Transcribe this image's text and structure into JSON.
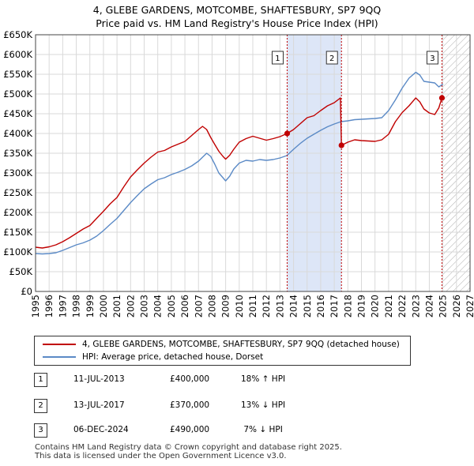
{
  "title_line1": "4, GLEBE GARDENS, MOTCOMBE, SHAFTESBURY, SP7 9QQ",
  "title_line2": "Price paid vs. HM Land Registry's House Price Index (HPI)",
  "colors": {
    "property": "#c00000",
    "hpi": "#5b8ac6",
    "shade": "#dde6f7",
    "marker_border": "#333333"
  },
  "legend": {
    "property_label": "4, GLEBE GARDENS, MOTCOMBE, SHAFTESBURY, SP7 9QQ (detached house)",
    "hpi_label": "HPI: Average price, detached house, Dorset"
  },
  "sales": [
    {
      "num": "1",
      "date": "11-JUL-2013",
      "price": "£400,000",
      "hpi": "18% ↑ HPI"
    },
    {
      "num": "2",
      "date": "13-JUL-2017",
      "price": "£370,000",
      "hpi": "13% ↓ HPI"
    },
    {
      "num": "3",
      "date": "06-DEC-2024",
      "price": "£490,000",
      "hpi": " 7% ↓ HPI"
    }
  ],
  "footer_line1": "Contains HM Land Registry data © Crown copyright and database right 2025.",
  "footer_line2": "This data is licensed under the Open Government Licence v3.0.",
  "chart_data": {
    "type": "line",
    "xlim": [
      1995,
      2027
    ],
    "ylim": [
      0,
      650000
    ],
    "x_ticks": [
      1995,
      1996,
      1997,
      1998,
      1999,
      2000,
      2001,
      2002,
      2003,
      2004,
      2005,
      2006,
      2007,
      2008,
      2009,
      2010,
      2011,
      2012,
      2013,
      2014,
      2015,
      2016,
      2017,
      2018,
      2019,
      2020,
      2021,
      2022,
      2023,
      2024,
      2025,
      2026,
      2027
    ],
    "y_ticks": [
      0,
      50000,
      100000,
      150000,
      200000,
      250000,
      300000,
      350000,
      400000,
      450000,
      500000,
      550000,
      600000,
      650000
    ],
    "y_tick_labels": [
      "£0",
      "£50K",
      "£100K",
      "£150K",
      "£200K",
      "£250K",
      "£300K",
      "£350K",
      "£400K",
      "£450K",
      "£500K",
      "£550K",
      "£600K",
      "£650K"
    ],
    "grid": true,
    "shaded_regions": [
      {
        "from": 2013.53,
        "to": 2017.53
      }
    ],
    "hatched_region": {
      "from": 2025.0,
      "to": 2027
    },
    "sale_markers": [
      {
        "label": "1",
        "x": 2013.53,
        "y": 400000
      },
      {
        "label": "2",
        "x": 2017.53,
        "y": 370000
      },
      {
        "label": "3",
        "x": 2024.93,
        "y": 490000
      }
    ],
    "series": [
      {
        "name": "4, GLEBE GARDENS, MOTCOMBE, SHAFTESBURY, SP7 9QQ (detached house)",
        "x": [
          1995,
          1995.5,
          1996,
          1996.5,
          1997,
          1997.5,
          1998,
          1998.5,
          1999,
          1999.5,
          2000,
          2000.5,
          2001,
          2001.5,
          2002,
          2002.5,
          2003,
          2003.5,
          2004,
          2004.5,
          2005,
          2005.5,
          2006,
          2006.5,
          2007,
          2007.3,
          2007.6,
          2007.9,
          2008.2,
          2008.5,
          2008.8,
          2009.0,
          2009.3,
          2009.6,
          2010,
          2010.5,
          2011,
          2011.5,
          2012,
          2012.5,
          2013,
          2013.53,
          2014,
          2014.5,
          2015,
          2015.5,
          2016,
          2016.5,
          2017,
          2017.45,
          2017.53,
          2018,
          2018.5,
          2019,
          2019.5,
          2020,
          2020.5,
          2021,
          2021.5,
          2022,
          2022.5,
          2023,
          2023.3,
          2023.6,
          2024,
          2024.4,
          2024.7,
          2024.93,
          2025.1
        ],
        "values": [
          112000,
          110000,
          113000,
          118000,
          126000,
          136000,
          147000,
          158000,
          167000,
          185000,
          203000,
          222000,
          238000,
          265000,
          290000,
          308000,
          325000,
          340000,
          353000,
          357000,
          366000,
          373000,
          380000,
          395000,
          410000,
          418000,
          410000,
          390000,
          372000,
          355000,
          342000,
          335000,
          345000,
          360000,
          378000,
          387000,
          393000,
          388000,
          383000,
          387000,
          392000,
          400000,
          410000,
          425000,
          440000,
          445000,
          458000,
          470000,
          478000,
          490000,
          370000,
          378000,
          384000,
          382000,
          381000,
          380000,
          384000,
          398000,
          430000,
          453000,
          470000,
          490000,
          480000,
          462000,
          452000,
          448000,
          465000,
          490000,
          486000
        ]
      },
      {
        "name": "HPI: Average price, detached house, Dorset",
        "x": [
          1995,
          1995.5,
          1996,
          1996.5,
          1997,
          1997.5,
          1998,
          1998.5,
          1999,
          1999.5,
          2000,
          2000.5,
          2001,
          2001.5,
          2002,
          2002.5,
          2003,
          2003.5,
          2004,
          2004.5,
          2005,
          2005.5,
          2006,
          2006.5,
          2007,
          2007.3,
          2007.6,
          2007.9,
          2008.2,
          2008.5,
          2008.8,
          2009.0,
          2009.3,
          2009.6,
          2010,
          2010.5,
          2011,
          2011.5,
          2012,
          2012.5,
          2013,
          2013.5,
          2014,
          2014.5,
          2015,
          2015.5,
          2016,
          2016.5,
          2017,
          2017.5,
          2018,
          2018.5,
          2019,
          2019.5,
          2020,
          2020.5,
          2021,
          2021.5,
          2022,
          2022.5,
          2023,
          2023.3,
          2023.6,
          2024,
          2024.4,
          2024.7,
          2025.0
        ],
        "values": [
          96000,
          95000,
          96000,
          98000,
          104000,
          111000,
          118000,
          123000,
          130000,
          140000,
          154000,
          170000,
          185000,
          205000,
          225000,
          243000,
          260000,
          272000,
          283000,
          288000,
          296000,
          302000,
          309000,
          318000,
          330000,
          340000,
          350000,
          342000,
          322000,
          300000,
          288000,
          280000,
          292000,
          310000,
          325000,
          332000,
          330000,
          334000,
          332000,
          334000,
          338000,
          344000,
          360000,
          375000,
          388000,
          398000,
          408000,
          417000,
          424000,
          430000,
          432000,
          435000,
          436000,
          437000,
          438000,
          440000,
          458000,
          485000,
          515000,
          540000,
          555000,
          548000,
          532000,
          530000,
          528000,
          518000,
          525000
        ]
      }
    ]
  }
}
